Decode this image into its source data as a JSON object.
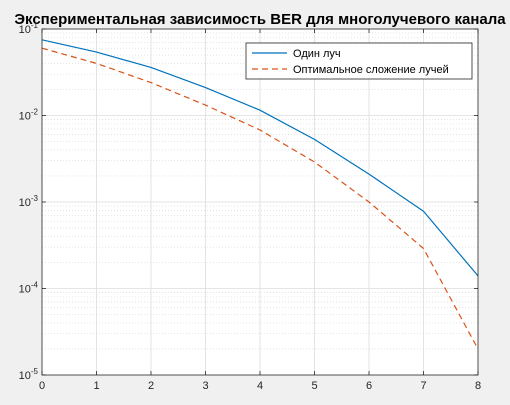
{
  "chart_data": {
    "type": "line",
    "title": "Экспериментальная зависимость BER для многолучевого канала",
    "xlabel": "",
    "ylabel": "",
    "x": [
      0,
      1,
      2,
      3,
      4,
      5,
      6,
      7,
      8
    ],
    "xlim": [
      0,
      8
    ],
    "ylim": [
      1e-05,
      0.1
    ],
    "yscale": "log",
    "x_ticks": [
      "0",
      "1",
      "2",
      "3",
      "4",
      "5",
      "6",
      "7",
      "8"
    ],
    "y_ticks": [
      {
        "base": "10",
        "exp": "-1"
      },
      {
        "base": "10",
        "exp": "-2"
      },
      {
        "base": "10",
        "exp": "-3"
      },
      {
        "base": "10",
        "exp": "-4"
      },
      {
        "base": "10",
        "exp": "-5"
      }
    ],
    "grid": true,
    "minor_grid": true,
    "legend_position": "top-right",
    "series": [
      {
        "name": "Один луч",
        "color": "#0072bd",
        "style": "solid",
        "values": [
          0.075,
          0.054,
          0.036,
          0.021,
          0.0115,
          0.0053,
          0.0021,
          0.00078,
          0.00014
        ]
      },
      {
        "name": "Оптимальное сложение лучей",
        "color": "#d95319",
        "style": "dashed",
        "values": [
          0.06,
          0.04,
          0.024,
          0.0132,
          0.0068,
          0.0029,
          0.001,
          0.00029,
          2e-05
        ]
      }
    ]
  }
}
